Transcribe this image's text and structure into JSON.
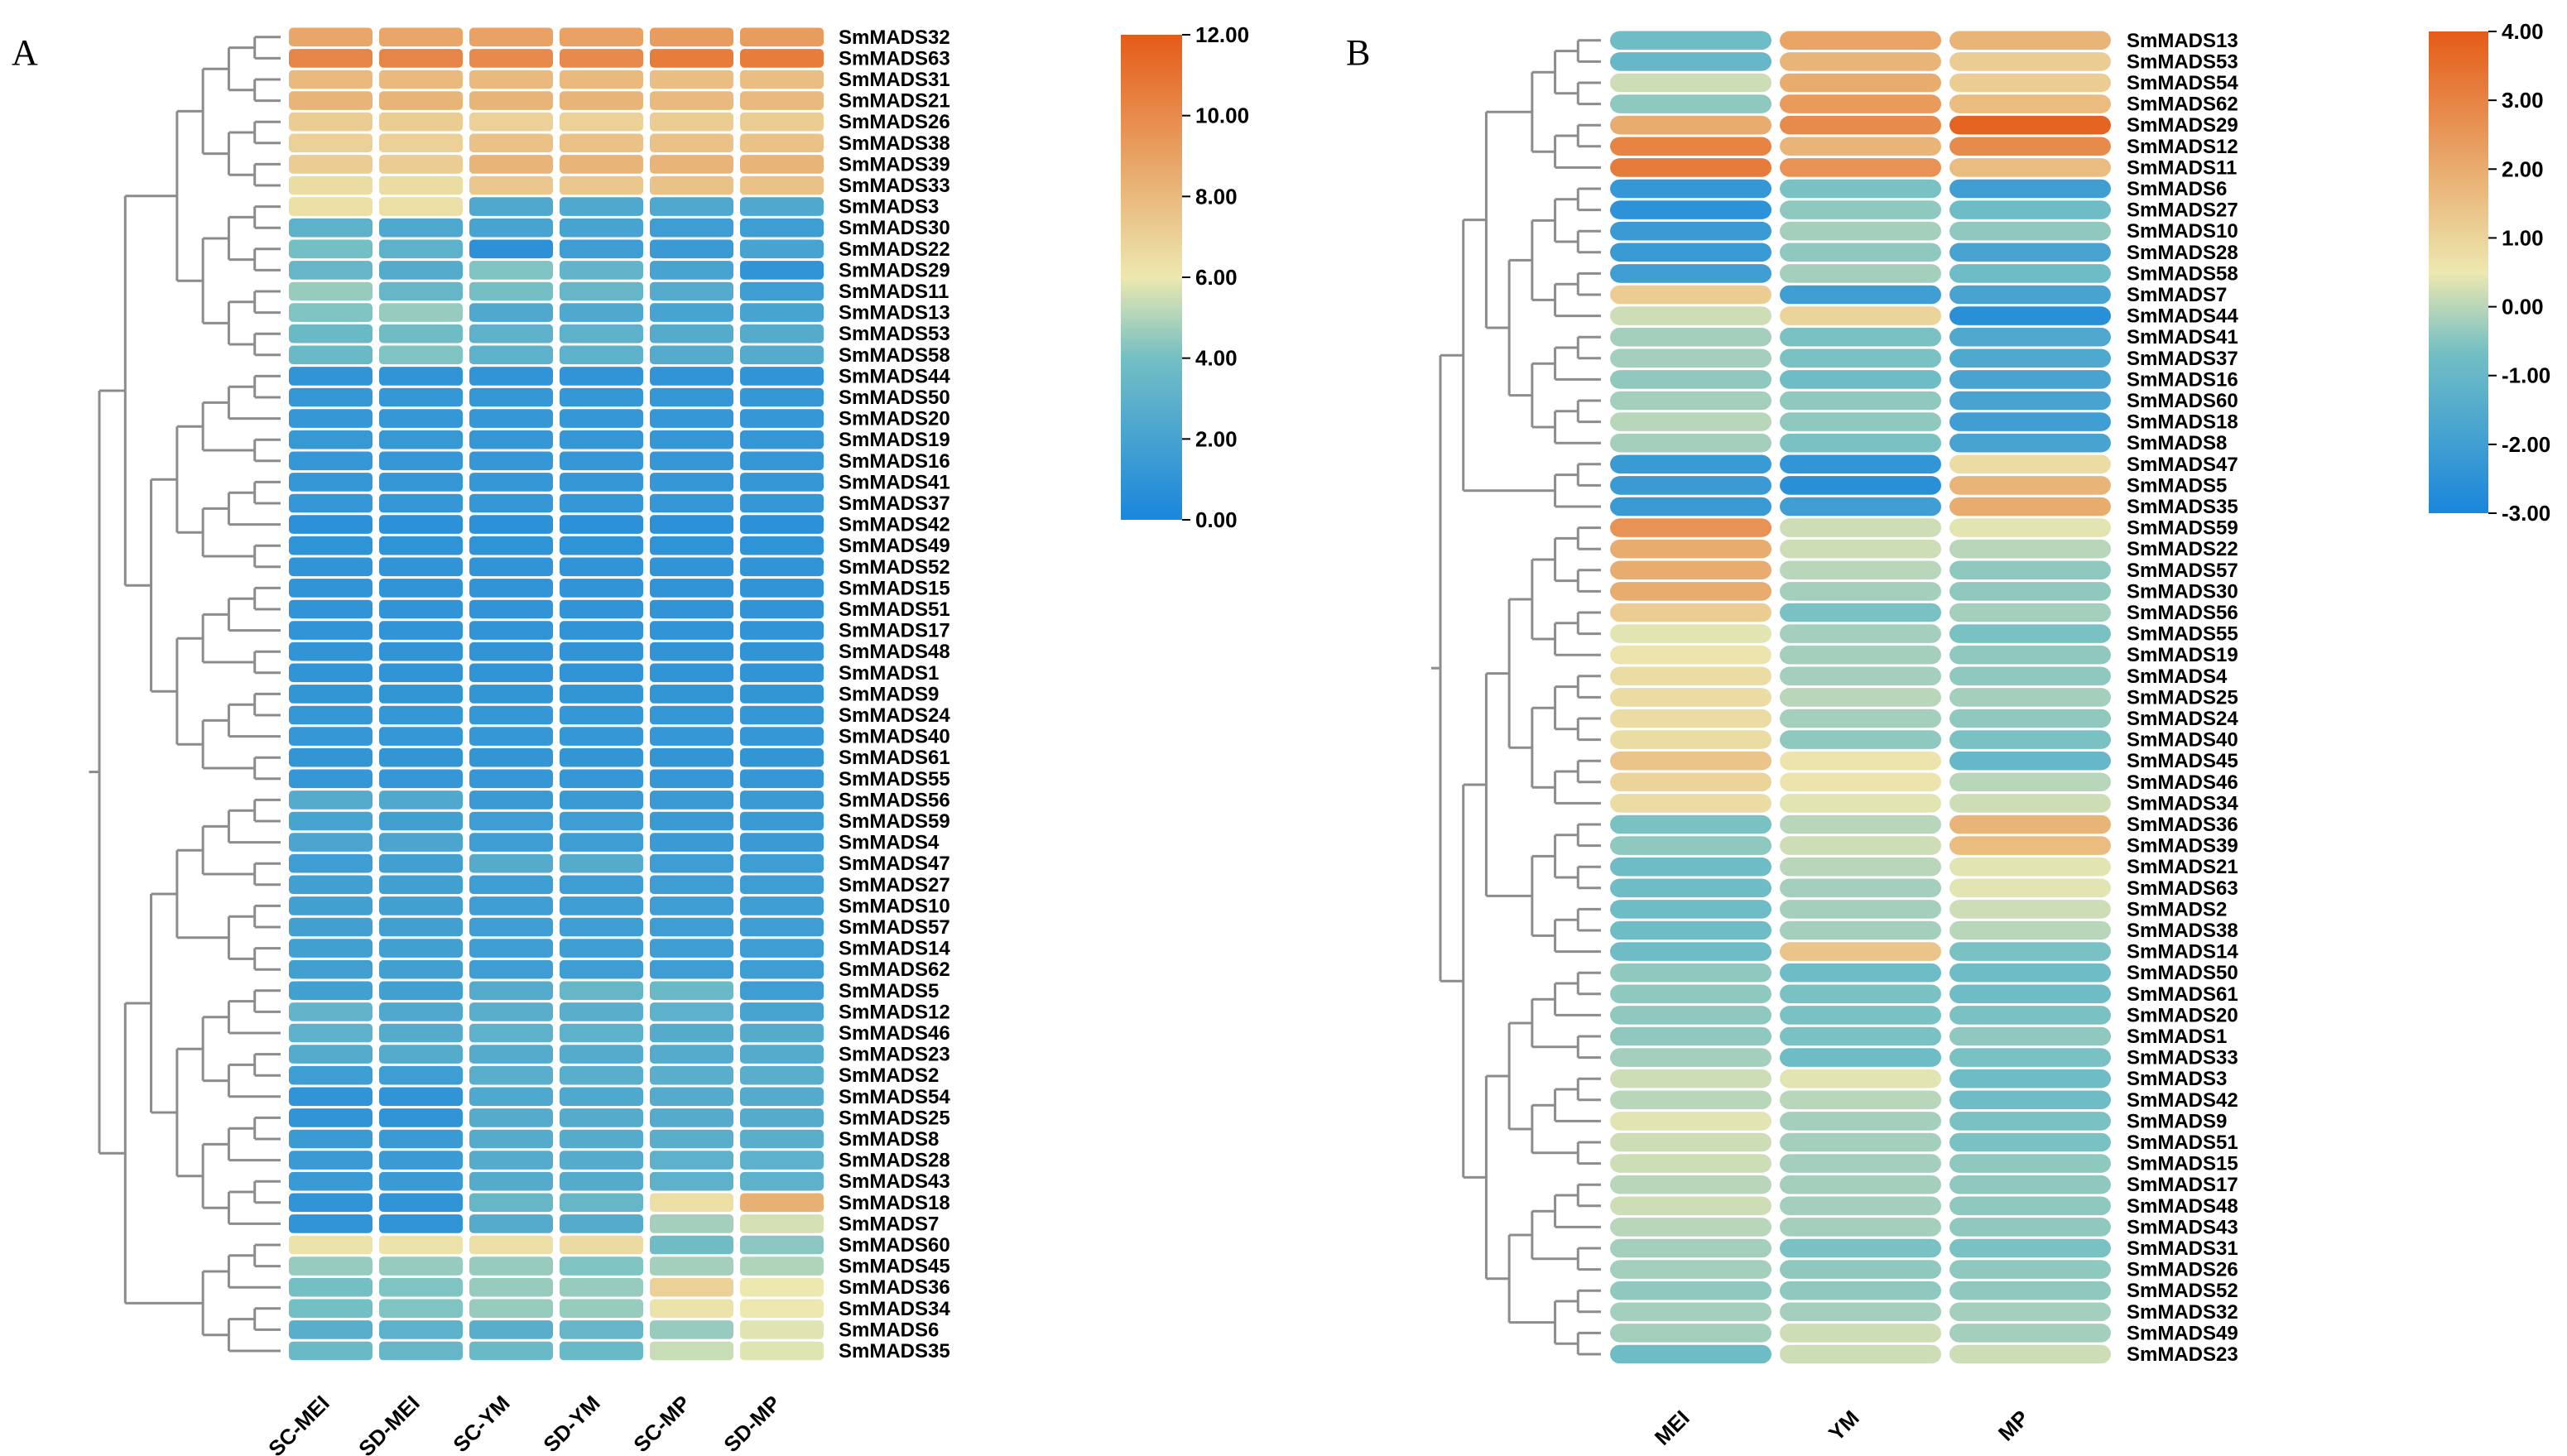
{
  "chart_data": [
    {
      "type": "heatmap",
      "panel_label": "A",
      "title": "",
      "columns": [
        "SC-MEI",
        "SD-MEI",
        "SC-YM",
        "SD-YM",
        "SC-MP",
        "SD-MP"
      ],
      "rows": [
        "SmMADS32",
        "SmMADS63",
        "SmMADS31",
        "SmMADS21",
        "SmMADS26",
        "SmMADS38",
        "SmMADS39",
        "SmMADS33",
        "SmMADS3",
        "SmMADS30",
        "SmMADS22",
        "SmMADS29",
        "SmMADS11",
        "SmMADS13",
        "SmMADS53",
        "SmMADS58",
        "SmMADS44",
        "SmMADS50",
        "SmMADS20",
        "SmMADS19",
        "SmMADS16",
        "SmMADS41",
        "SmMADS37",
        "SmMADS42",
        "SmMADS49",
        "SmMADS52",
        "SmMADS15",
        "SmMADS51",
        "SmMADS17",
        "SmMADS48",
        "SmMADS1",
        "SmMADS9",
        "SmMADS24",
        "SmMADS40",
        "SmMADS61",
        "SmMADS55",
        "SmMADS56",
        "SmMADS59",
        "SmMADS4",
        "SmMADS47",
        "SmMADS27",
        "SmMADS10",
        "SmMADS57",
        "SmMADS14",
        "SmMADS62",
        "SmMADS5",
        "SmMADS12",
        "SmMADS46",
        "SmMADS23",
        "SmMADS2",
        "SmMADS54",
        "SmMADS25",
        "SmMADS8",
        "SmMADS28",
        "SmMADS43",
        "SmMADS18",
        "SmMADS7",
        "SmMADS60",
        "SmMADS45",
        "SmMADS36",
        "SmMADS34",
        "SmMADS6",
        "SmMADS35"
      ],
      "values": [
        [
          8.8,
          8.8,
          9.0,
          9.0,
          9.2,
          9.2
        ],
        [
          10.2,
          10.2,
          10.0,
          10.0,
          10.6,
          10.6
        ],
        [
          8.0,
          8.0,
          8.0,
          8.0,
          7.8,
          7.8
        ],
        [
          8.2,
          8.2,
          8.2,
          8.2,
          8.0,
          8.0
        ],
        [
          7.2,
          7.2,
          7.0,
          7.0,
          7.2,
          7.2
        ],
        [
          7.0,
          7.0,
          7.6,
          7.6,
          7.6,
          7.6
        ],
        [
          7.2,
          7.2,
          8.2,
          8.2,
          8.2,
          8.2
        ],
        [
          6.5,
          6.5,
          7.4,
          7.4,
          7.6,
          7.6
        ],
        [
          6.4,
          6.4,
          2.4,
          2.4,
          2.4,
          2.4
        ],
        [
          3.0,
          2.4,
          2.0,
          2.0,
          1.6,
          1.6
        ],
        [
          4.0,
          3.0,
          0.8,
          1.6,
          1.4,
          2.0
        ],
        [
          3.4,
          2.6,
          4.2,
          3.2,
          2.0,
          1.0
        ],
        [
          4.6,
          3.4,
          4.0,
          3.4,
          2.6,
          1.6
        ],
        [
          4.2,
          4.6,
          2.4,
          2.4,
          2.0,
          2.0
        ],
        [
          3.6,
          3.8,
          3.0,
          3.0,
          2.6,
          2.6
        ],
        [
          3.6,
          4.2,
          3.0,
          3.0,
          2.6,
          2.6
        ],
        [
          1.0,
          1.0,
          1.0,
          1.0,
          1.0,
          1.0
        ],
        [
          1.2,
          1.2,
          1.2,
          1.2,
          1.2,
          1.2
        ],
        [
          1.2,
          1.2,
          1.2,
          1.2,
          1.2,
          1.2
        ],
        [
          1.3,
          1.3,
          1.2,
          1.2,
          1.2,
          1.2
        ],
        [
          1.2,
          1.2,
          1.2,
          1.2,
          1.2,
          1.2
        ],
        [
          1.2,
          1.2,
          1.2,
          1.2,
          1.2,
          1.2
        ],
        [
          1.2,
          1.2,
          1.2,
          1.2,
          1.2,
          1.2
        ],
        [
          0.8,
          0.8,
          0.8,
          0.8,
          0.8,
          0.8
        ],
        [
          0.9,
          0.9,
          0.9,
          0.9,
          0.9,
          0.9
        ],
        [
          1.0,
          1.0,
          1.0,
          1.0,
          1.0,
          1.0
        ],
        [
          1.0,
          1.0,
          1.0,
          1.0,
          1.0,
          1.0
        ],
        [
          1.0,
          1.0,
          1.0,
          1.0,
          1.0,
          1.0
        ],
        [
          1.0,
          1.0,
          1.0,
          1.0,
          1.0,
          1.0
        ],
        [
          1.0,
          1.0,
          1.0,
          1.0,
          1.0,
          1.0
        ],
        [
          1.0,
          1.0,
          1.0,
          1.0,
          1.0,
          1.0
        ],
        [
          1.1,
          1.1,
          1.1,
          1.1,
          1.1,
          1.1
        ],
        [
          1.2,
          1.2,
          1.2,
          1.2,
          1.2,
          1.2
        ],
        [
          1.2,
          1.2,
          1.2,
          1.2,
          1.2,
          1.2
        ],
        [
          1.1,
          1.1,
          1.1,
          1.1,
          1.1,
          1.1
        ],
        [
          1.2,
          1.2,
          1.2,
          1.2,
          1.2,
          1.2
        ],
        [
          2.6,
          2.4,
          1.4,
          1.4,
          1.4,
          1.4
        ],
        [
          2.0,
          1.8,
          1.6,
          1.6,
          1.4,
          1.4
        ],
        [
          2.2,
          2.2,
          1.6,
          1.6,
          1.4,
          1.4
        ],
        [
          1.6,
          1.8,
          2.6,
          2.6,
          1.6,
          1.6
        ],
        [
          1.8,
          1.8,
          1.6,
          1.6,
          1.6,
          1.6
        ],
        [
          1.8,
          1.8,
          1.6,
          1.6,
          1.6,
          1.6
        ],
        [
          1.8,
          1.8,
          1.6,
          1.6,
          1.6,
          1.6
        ],
        [
          1.8,
          1.8,
          1.6,
          1.6,
          1.6,
          1.6
        ],
        [
          1.8,
          1.8,
          1.6,
          1.6,
          1.6,
          1.6
        ],
        [
          1.8,
          1.8,
          2.6,
          3.4,
          3.6,
          1.6
        ],
        [
          3.2,
          2.4,
          2.8,
          2.8,
          3.0,
          2.0
        ],
        [
          3.0,
          2.6,
          3.0,
          3.0,
          2.6,
          2.6
        ],
        [
          2.6,
          2.6,
          2.6,
          2.6,
          2.6,
          2.6
        ],
        [
          1.6,
          1.6,
          2.8,
          2.8,
          2.8,
          2.8
        ],
        [
          1.0,
          1.0,
          2.4,
          2.4,
          2.6,
          2.6
        ],
        [
          1.0,
          1.0,
          2.6,
          2.6,
          2.6,
          2.6
        ],
        [
          1.4,
          1.4,
          2.6,
          2.6,
          2.8,
          2.8
        ],
        [
          1.4,
          1.4,
          2.6,
          2.6,
          3.0,
          3.0
        ],
        [
          1.4,
          1.4,
          2.6,
          2.6,
          3.0,
          3.0
        ],
        [
          1.0,
          1.0,
          3.4,
          3.4,
          6.4,
          8.4
        ],
        [
          1.0,
          1.0,
          2.6,
          2.6,
          4.8,
          5.6
        ],
        [
          6.2,
          6.2,
          6.4,
          6.6,
          3.8,
          4.4
        ],
        [
          4.6,
          4.6,
          4.6,
          4.2,
          4.8,
          5.0
        ],
        [
          4.0,
          4.2,
          4.6,
          4.6,
          7.0,
          6.0
        ],
        [
          4.0,
          4.2,
          4.6,
          4.6,
          6.2,
          6.0
        ],
        [
          2.8,
          3.0,
          2.8,
          3.4,
          4.6,
          5.8
        ],
        [
          3.6,
          3.4,
          3.6,
          3.6,
          5.4,
          5.8
        ]
      ],
      "colorbar": {
        "min": 0,
        "max": 12,
        "ticks": [
          "0.00",
          "2.00",
          "4.00",
          "6.00",
          "8.00",
          "10.00",
          "12.00"
        ],
        "tick_values": [
          0,
          2,
          4,
          6,
          8,
          10,
          12
        ],
        "colors": [
          "#1a86dc",
          "#73bfc4",
          "#ece8b0",
          "#e55b18"
        ]
      },
      "dendrogram": "hierarchical clustering tree on left (rows)"
    },
    {
      "type": "heatmap",
      "panel_label": "B",
      "title": "",
      "columns": [
        "MEI",
        "YM",
        "MP"
      ],
      "rows": [
        "SmMADS13",
        "SmMADS53",
        "SmMADS54",
        "SmMADS62",
        "SmMADS29",
        "SmMADS12",
        "SmMADS11",
        "SmMADS6",
        "SmMADS27",
        "SmMADS10",
        "SmMADS28",
        "SmMADS58",
        "SmMADS7",
        "SmMADS44",
        "SmMADS41",
        "SmMADS37",
        "SmMADS16",
        "SmMADS60",
        "SmMADS18",
        "SmMADS8",
        "SmMADS47",
        "SmMADS5",
        "SmMADS35",
        "SmMADS59",
        "SmMADS22",
        "SmMADS57",
        "SmMADS30",
        "SmMADS56",
        "SmMADS55",
        "SmMADS19",
        "SmMADS4",
        "SmMADS25",
        "SmMADS24",
        "SmMADS40",
        "SmMADS45",
        "SmMADS46",
        "SmMADS34",
        "SmMADS36",
        "SmMADS39",
        "SmMADS21",
        "SmMADS63",
        "SmMADS2",
        "SmMADS38",
        "SmMADS14",
        "SmMADS50",
        "SmMADS61",
        "SmMADS20",
        "SmMADS1",
        "SmMADS33",
        "SmMADS3",
        "SmMADS42",
        "SmMADS9",
        "SmMADS51",
        "SmMADS15",
        "SmMADS17",
        "SmMADS48",
        "SmMADS43",
        "SmMADS31",
        "SmMADS26",
        "SmMADS52",
        "SmMADS32",
        "SmMADS49",
        "SmMADS23"
      ],
      "values": [
        [
          -0.8,
          2.2,
          1.8
        ],
        [
          -1.0,
          1.8,
          1.2
        ],
        [
          0.2,
          2.0,
          1.2
        ],
        [
          -0.4,
          2.4,
          1.6
        ],
        [
          2.0,
          2.8,
          3.8
        ],
        [
          3.0,
          1.8,
          2.8
        ],
        [
          3.2,
          2.6,
          1.6
        ],
        [
          -2.3,
          -0.6,
          -2.0
        ],
        [
          -2.5,
          -0.4,
          -0.8
        ],
        [
          -2.2,
          -0.2,
          -0.4
        ],
        [
          -2.2,
          -0.4,
          -1.8
        ],
        [
          -2.0,
          -0.2,
          -0.8
        ],
        [
          1.2,
          -2.0,
          -1.8
        ],
        [
          0.2,
          1.0,
          -2.6
        ],
        [
          -0.2,
          -0.6,
          -1.6
        ],
        [
          -0.2,
          -0.6,
          -1.6
        ],
        [
          -0.4,
          -0.8,
          -1.8
        ],
        [
          -0.2,
          -0.4,
          -1.8
        ],
        [
          0.0,
          -0.4,
          -2.0
        ],
        [
          -0.2,
          -0.6,
          -1.8
        ],
        [
          -2.2,
          -2.4,
          0.8
        ],
        [
          -2.2,
          -2.6,
          1.8
        ],
        [
          -2.2,
          -2.0,
          2.0
        ],
        [
          2.6,
          0.2,
          0.4
        ],
        [
          2.0,
          0.2,
          0.0
        ],
        [
          2.0,
          0.0,
          -0.4
        ],
        [
          2.0,
          -0.2,
          -0.4
        ],
        [
          1.2,
          -0.6,
          -0.2
        ],
        [
          0.4,
          -0.2,
          -0.6
        ],
        [
          0.6,
          -0.2,
          -0.4
        ],
        [
          0.8,
          -0.2,
          -0.4
        ],
        [
          0.8,
          0.0,
          -0.2
        ],
        [
          0.8,
          -0.2,
          -0.4
        ],
        [
          0.8,
          -0.4,
          -0.6
        ],
        [
          1.4,
          0.6,
          -1.0
        ],
        [
          1.0,
          0.6,
          0.0
        ],
        [
          0.8,
          0.4,
          0.2
        ],
        [
          -0.6,
          0.0,
          1.8
        ],
        [
          -0.4,
          0.2,
          1.6
        ],
        [
          -0.8,
          0.0,
          0.4
        ],
        [
          -0.8,
          -0.2,
          0.4
        ],
        [
          -0.8,
          -0.2,
          0.2
        ],
        [
          -0.8,
          -0.2,
          0.0
        ],
        [
          -0.8,
          1.4,
          -0.6
        ],
        [
          -0.4,
          -0.8,
          -0.8
        ],
        [
          -0.4,
          -0.6,
          -0.8
        ],
        [
          -0.4,
          -0.6,
          -0.6
        ],
        [
          -0.4,
          -0.6,
          -0.4
        ],
        [
          -0.2,
          -0.8,
          -0.6
        ],
        [
          0.2,
          0.4,
          -0.8
        ],
        [
          0.0,
          0.0,
          -0.8
        ],
        [
          0.4,
          -0.2,
          -0.6
        ],
        [
          0.2,
          -0.2,
          -0.6
        ],
        [
          0.2,
          -0.2,
          -0.4
        ],
        [
          0.0,
          -0.2,
          -0.4
        ],
        [
          0.2,
          -0.2,
          -0.4
        ],
        [
          0.0,
          -0.2,
          -0.4
        ],
        [
          -0.2,
          -0.6,
          -0.6
        ],
        [
          -0.2,
          -0.4,
          -0.4
        ],
        [
          -0.4,
          -0.4,
          -0.4
        ],
        [
          -0.2,
          -0.2,
          -0.2
        ],
        [
          -0.2,
          0.2,
          -0.2
        ],
        [
          -0.8,
          0.2,
          0.2
        ]
      ],
      "colorbar": {
        "min": -3,
        "max": 4,
        "ticks": [
          "-3.00",
          "-2.00",
          "-1.00",
          "0.00",
          "1.00",
          "2.00",
          "3.00",
          "4.00"
        ],
        "tick_values": [
          -3,
          -2,
          -1,
          0,
          1,
          2,
          3,
          4
        ],
        "colors": [
          "#1a86dc",
          "#73bfc4",
          "#ece8b0",
          "#e55b18"
        ]
      },
      "dendrogram": "hierarchical clustering tree on left (rows)"
    }
  ]
}
